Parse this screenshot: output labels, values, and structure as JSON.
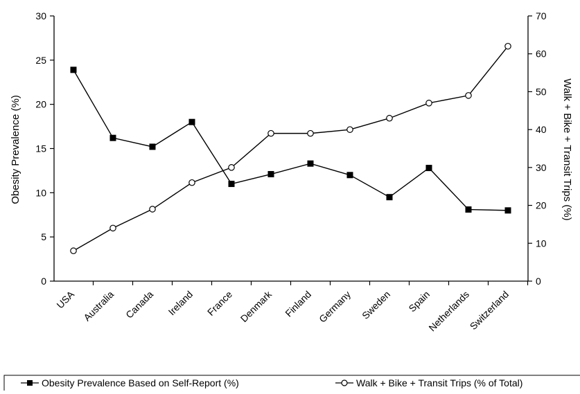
{
  "chart_data": {
    "type": "line",
    "categories": [
      "USA",
      "Australia",
      "Canada",
      "Ireland",
      "France",
      "Denmark",
      "Finland",
      "Germany",
      "Sweden",
      "Spain",
      "Netherlands",
      "Switzerland"
    ],
    "series": [
      {
        "name": "Obesity Prevalence Based on Self-Report (%)",
        "axis": "left",
        "marker": "filled-square",
        "values": [
          23.9,
          16.2,
          15.2,
          18.0,
          11.0,
          12.1,
          13.3,
          12.0,
          9.5,
          12.8,
          8.1,
          8.0
        ]
      },
      {
        "name": "Walk + Bike + Transit Trips (% of Total)",
        "axis": "right",
        "marker": "open-circle",
        "values": [
          8,
          14,
          19,
          26,
          30,
          39,
          39,
          40,
          43,
          47,
          49,
          62
        ]
      }
    ],
    "ylabel": "Obesity Prevalence (%)",
    "ylabel_right": "Walk + Bike + Transit Trips (%)",
    "xlabel": "",
    "title": "",
    "ylim": [
      0,
      30
    ],
    "ylim_right": [
      0,
      70
    ],
    "yticks": [
      "0",
      "5",
      "10",
      "15",
      "20",
      "25",
      "30"
    ],
    "yticks_right": [
      "0",
      "10",
      "20",
      "30",
      "40",
      "50",
      "60",
      "70"
    ],
    "grid": false,
    "legend_position": "bottom",
    "line_color": "#000000"
  }
}
